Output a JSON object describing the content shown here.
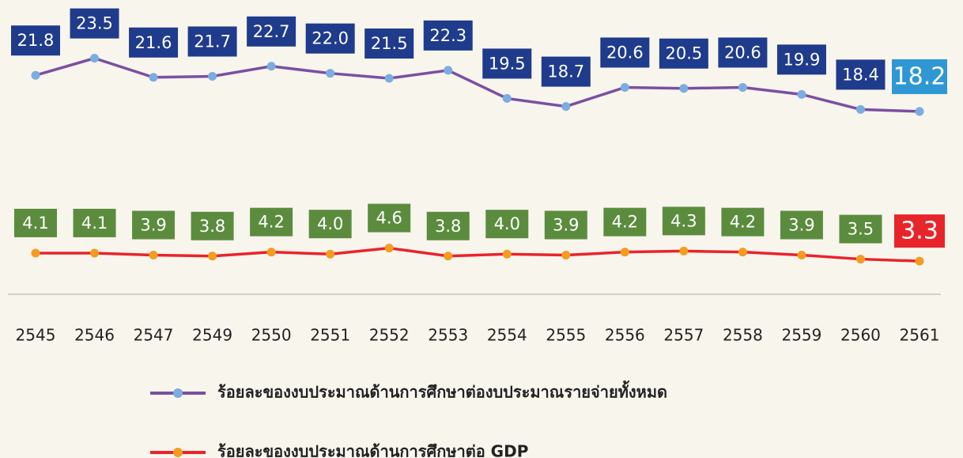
{
  "chart_data": {
    "type": "line",
    "categories": [
      "2545",
      "2546",
      "2547",
      "2549",
      "2550",
      "2551",
      "2552",
      "2553",
      "2554",
      "2555",
      "2556",
      "2557",
      "2558",
      "2559",
      "2560",
      "2561"
    ],
    "ylim": [
      0,
      29.3
    ],
    "series": [
      {
        "name": "ร้อยละของงบประมาณด้านการศึกษาต่องบประมาณรายจ่ายทั้งหมด",
        "color": "#7b4fa0",
        "marker_color": "#7aade0",
        "label_color": "#1f3b8c",
        "last_label_color": "#2e97d4",
        "values": [
          21.8,
          23.5,
          21.6,
          21.7,
          22.7,
          22.0,
          21.5,
          22.3,
          19.5,
          18.7,
          20.6,
          20.5,
          20.6,
          19.9,
          18.4,
          18.2
        ],
        "value_labels": [
          "21.8",
          "23.5",
          "21.6",
          "21.7",
          "22.7",
          "22.0",
          "21.5",
          "22.3",
          "19.5",
          "18.7",
          "20.6",
          "20.5",
          "20.6",
          "19.9",
          "18.4",
          "18.2"
        ]
      },
      {
        "name": "ร้อยละของงบประมาณด้านการศึกษาต่อ GDP",
        "color": "#e8242b",
        "marker_color": "#f39c1f",
        "label_color": "#5b8c3e",
        "last_label_color": "#e8242b",
        "values": [
          4.1,
          4.1,
          3.9,
          3.8,
          4.2,
          4.0,
          4.6,
          3.8,
          4.0,
          3.9,
          4.2,
          4.3,
          4.2,
          3.9,
          3.5,
          3.3
        ],
        "value_labels": [
          "4.1",
          "4.1",
          "3.9",
          "3.8",
          "4.2",
          "4.0",
          "4.6",
          "3.8",
          "4.0",
          "3.9",
          "4.2",
          "4.3",
          "4.2",
          "3.9",
          "3.5",
          "3.3"
        ]
      }
    ]
  }
}
